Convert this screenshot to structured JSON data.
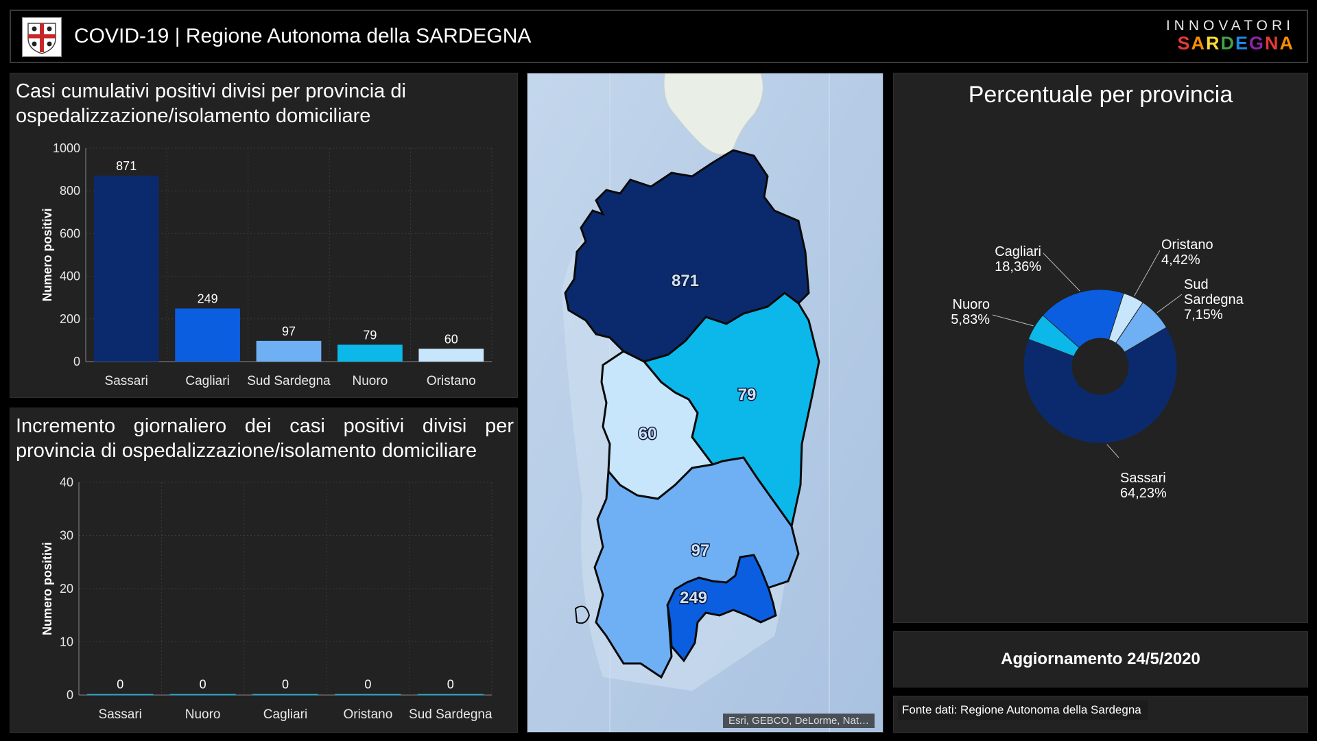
{
  "header": {
    "title": "COVID-19 | Regione Autonoma della SARDEGNA",
    "brand_top": "INNOVATORI",
    "brand_bottom": "SARDEGNA",
    "brand_colors": [
      "#e53935",
      "#fb8c00",
      "#fdd835",
      "#43a047",
      "#1e88e5",
      "#8e24aa",
      "#e53935",
      "#fb8c00"
    ]
  },
  "panel_cumulative": {
    "title": "Casi cumulativi positivi divisi per provincia di ospedalizzazione/isolamento domiciliare"
  },
  "panel_daily": {
    "title": "Incremento giornaliero dei casi positivi divisi per provincia di ospedalizzazione/isolamento domiciliare"
  },
  "map": {
    "attribution": "Esri, GEBCO, DeLorme, Nat…",
    "labels": [
      {
        "province": "Sassari",
        "value": "871"
      },
      {
        "province": "Nuoro",
        "value": "79"
      },
      {
        "province": "Oristano",
        "value": "60"
      },
      {
        "province": "Sud Sardegna",
        "value": "97"
      },
      {
        "province": "Cagliari",
        "value": "249"
      }
    ]
  },
  "pie_panel": {
    "title": "Percentuale per provincia"
  },
  "update": {
    "text": "Aggiornamento 24/5/2020"
  },
  "source": {
    "text": "Fonte dati: Regione Autonoma della Sardegna"
  },
  "colors": {
    "Sassari": "#0b2a6e",
    "Cagliari": "#0b5ee0",
    "Sud Sardegna": "#6fb0f5",
    "Nuoro": "#0cb8ea",
    "Oristano": "#c8e6fb"
  },
  "chart_data": [
    {
      "type": "bar",
      "categories": [
        "Sassari",
        "Cagliari",
        "Sud Sardegna",
        "Nuoro",
        "Oristano"
      ],
      "values": [
        871,
        249,
        97,
        79,
        60
      ],
      "value_labels": [
        "871",
        "249",
        "97",
        "79",
        "60"
      ],
      "ylabel": "Numero positivi",
      "ylim": [
        0,
        1000
      ],
      "yticks": [
        "0",
        "200",
        "400",
        "600",
        "800",
        "1000"
      ],
      "grid": true
    },
    {
      "type": "bar",
      "categories": [
        "Sassari",
        "Nuoro",
        "Cagliari",
        "Oristano",
        "Sud Sardegna"
      ],
      "values": [
        0,
        0,
        0,
        0,
        0
      ],
      "value_labels": [
        "0",
        "0",
        "0",
        "0",
        "0"
      ],
      "ylabel": "Numero positivi",
      "ylim": [
        0,
        40
      ],
      "yticks": [
        "0",
        "10",
        "20",
        "30",
        "40"
      ],
      "grid": true
    },
    {
      "type": "pie",
      "donut": true,
      "slices": [
        {
          "name": "Sassari",
          "value": 64.23,
          "label": "64,23%"
        },
        {
          "name": "Nuoro",
          "value": 5.83,
          "label": "5,83%"
        },
        {
          "name": "Cagliari",
          "value": 18.36,
          "label": "18,36%"
        },
        {
          "name": "Oristano",
          "value": 4.42,
          "label": "4,42%"
        },
        {
          "name": "Sud Sardegna",
          "value": 7.15,
          "label": "7,15%"
        }
      ]
    }
  ]
}
